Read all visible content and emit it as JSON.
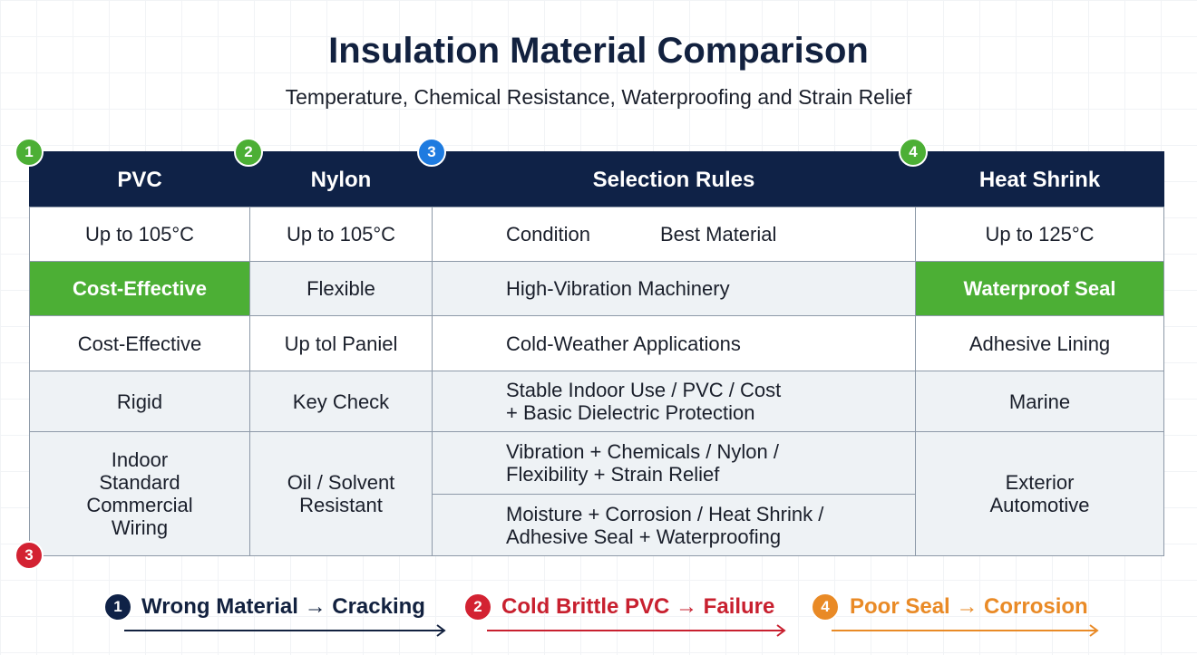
{
  "header": {
    "title": "Insulation Material Comparison",
    "subtitle": "Temperature, Chemical Resistance, Waterproofing and Strain Relief"
  },
  "table": {
    "columns": [
      {
        "badge": "1",
        "label": "PVC"
      },
      {
        "badge": "2",
        "label": "Nylon"
      },
      {
        "badge": "3",
        "label": "Selection Rules"
      },
      {
        "badge": "4",
        "label": "Heat Shrink"
      }
    ],
    "rows": [
      {
        "pvc": "Up to 105°C",
        "nylon": "Up to 105°C",
        "selection": {
          "condition": "Condition",
          "best_material": "Best Material"
        },
        "heat_shrink": "Up to 125°C"
      },
      {
        "pvc": "Cost-Effective",
        "nylon": "Flexible",
        "selection": "High-Vibration Machinery",
        "heat_shrink": "Waterproof Seal"
      },
      {
        "pvc": "Cost-Effective",
        "nylon": "Up tol Paniel",
        "selection": "Cold-Weather Applications",
        "heat_shrink": "Adhesive Lining"
      },
      {
        "pvc": "Rigid",
        "nylon": "Key Check",
        "selection": "Stable Indoor Use / PVC / Cost\n + Basic Dielectric Protection",
        "heat_shrink": "Marine"
      },
      {
        "pvc": "Indoor\nStandard\nCommercial\nWiring",
        "nylon": "Oil / Solvent\nResistant",
        "selection": [
          "Vibration + Chemicals / Nylon /\n Flexibility + Strain Relief",
          "Moisture + Corrosion / Heat Shrink /\nAdhesive Seal + Waterproofing"
        ],
        "heat_shrink": "Exterior\nAutomotive"
      }
    ],
    "corner_badge": "3"
  },
  "footer": [
    {
      "badge": "1",
      "text": "Wrong Material → Cracking"
    },
    {
      "badge": "2",
      "text": "Cold Brittle PVC → Failure"
    },
    {
      "badge": "4",
      "text": "Poor Seal → Corrosion"
    }
  ]
}
